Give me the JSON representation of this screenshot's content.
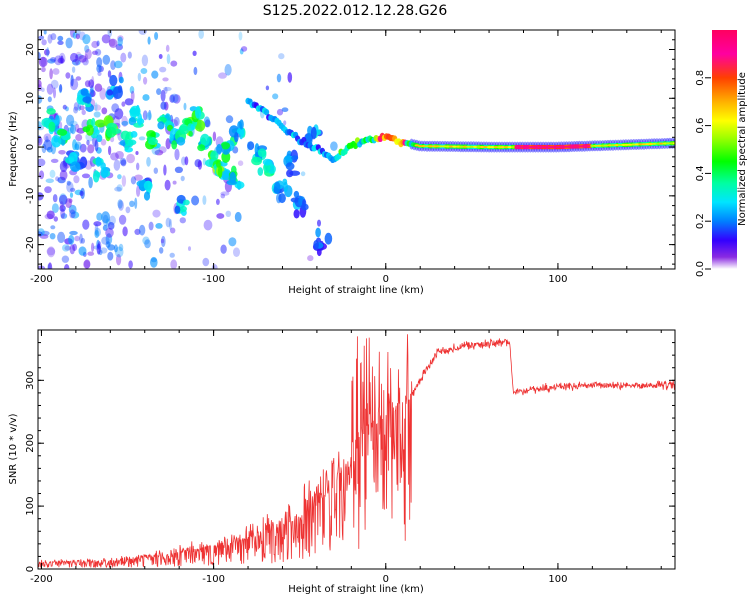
{
  "title": "S125.2022.012.12.28.G26",
  "colors": {
    "snr_line": "#ee3333",
    "axis": "#000000",
    "background": "#ffffff"
  },
  "chart_data": [
    {
      "type": "heatmap",
      "xlabel": "Height of straight line (km)",
      "ylabel": "Frequency (Hz)",
      "xlim": [
        -202,
        168
      ],
      "ylim": [
        -25,
        24
      ],
      "x_ticks": [
        -200,
        -100,
        0,
        100
      ],
      "y_ticks": [
        -20,
        -10,
        0,
        10,
        20
      ],
      "grid": false,
      "colorbar": {
        "label": "Normalized spectral amplitude",
        "range": [
          0,
          1
        ],
        "ticks": [
          "0.0",
          "0.2",
          "0.4",
          "0.6",
          "0.8"
        ],
        "colormap": "gist_ncar_like"
      },
      "ridge": [
        {
          "x": -80,
          "f": 9.5
        },
        {
          "x": -70,
          "f": 7.0
        },
        {
          "x": -60,
          "f": 4.0
        },
        {
          "x": -50,
          "f": 1.5
        },
        {
          "x": -40,
          "f": -0.5
        },
        {
          "x": -30,
          "f": -2.5
        },
        {
          "x": -20,
          "f": 0.5
        },
        {
          "x": -10,
          "f": 1.5
        },
        {
          "x": 0,
          "f": 2.0
        },
        {
          "x": 10,
          "f": 1.0
        },
        {
          "x": 20,
          "f": 0.2
        },
        {
          "x": 60,
          "f": 0.0
        },
        {
          "x": 100,
          "f": 0.0
        },
        {
          "x": 168,
          "f": 0.8
        }
      ],
      "blobs": [
        {
          "x": -195,
          "f": 5,
          "a": 0.35
        },
        {
          "x": -188,
          "f": 2,
          "a": 0.45
        },
        {
          "x": -180,
          "f": -3,
          "a": 0.3
        },
        {
          "x": -175,
          "f": 10,
          "a": 0.3
        },
        {
          "x": -170,
          "f": 3,
          "a": 0.45
        },
        {
          "x": -165,
          "f": -4,
          "a": 0.35
        },
        {
          "x": -160,
          "f": 4,
          "a": 0.55
        },
        {
          "x": -158,
          "f": 12,
          "a": 0.3
        },
        {
          "x": -150,
          "f": 1,
          "a": 0.35
        },
        {
          "x": -145,
          "f": 6,
          "a": 0.4
        },
        {
          "x": -140,
          "f": -8,
          "a": 0.3
        },
        {
          "x": -135,
          "f": 1,
          "a": 0.5
        },
        {
          "x": -128,
          "f": 5,
          "a": 0.45
        },
        {
          "x": -122,
          "f": 2,
          "a": 0.4
        },
        {
          "x": -118,
          "f": -12,
          "a": 0.3
        },
        {
          "x": -115,
          "f": 4,
          "a": 0.55
        },
        {
          "x": -110,
          "f": 6,
          "a": 0.5
        },
        {
          "x": -106,
          "f": 1,
          "a": 0.45
        },
        {
          "x": -100,
          "f": -3,
          "a": 0.55
        },
        {
          "x": -96,
          "f": -5,
          "a": 0.5
        },
        {
          "x": -92,
          "f": 0,
          "a": 0.4
        },
        {
          "x": -88,
          "f": -6,
          "a": 0.45
        },
        {
          "x": -85,
          "f": 3,
          "a": 0.35
        },
        {
          "x": -75,
          "f": -2,
          "a": 0.35
        },
        {
          "x": -68,
          "f": -4,
          "a": 0.35
        },
        {
          "x": -60,
          "f": -9,
          "a": 0.3
        },
        {
          "x": -55,
          "f": -3,
          "a": 0.3
        },
        {
          "x": -50,
          "f": -12,
          "a": 0.25
        },
        {
          "x": -42,
          "f": 3,
          "a": 0.3
        },
        {
          "x": -38,
          "f": -20,
          "a": 0.2
        }
      ]
    },
    {
      "type": "line",
      "xlabel": "Height of straight line (km)",
      "ylabel": "SNR (10 * v/v)",
      "xlim": [
        -202,
        168
      ],
      "ylim": [
        0,
        380
      ],
      "x_ticks": [
        -200,
        -100,
        0,
        100
      ],
      "y_ticks": [
        0,
        100,
        200,
        300
      ],
      "grid": false,
      "series": [
        {
          "color": "#ee3333",
          "trend": [
            {
              "x": -202,
              "y": 10
            },
            {
              "x": -160,
              "y": 12
            },
            {
              "x": -130,
              "y": 20
            },
            {
              "x": -110,
              "y": 30
            },
            {
              "x": -90,
              "y": 40
            },
            {
              "x": -70,
              "y": 55
            },
            {
              "x": -50,
              "y": 80
            },
            {
              "x": -40,
              "y": 100
            },
            {
              "x": -30,
              "y": 130
            },
            {
              "x": -20,
              "y": 160
            },
            {
              "x": -12,
              "y": 200
            },
            {
              "x": -5,
              "y": 230
            },
            {
              "x": 0,
              "y": 240
            },
            {
              "x": 10,
              "y": 250
            },
            {
              "x": 20,
              "y": 300
            },
            {
              "x": 30,
              "y": 345
            },
            {
              "x": 45,
              "y": 355
            },
            {
              "x": 60,
              "y": 358
            },
            {
              "x": 72,
              "y": 360
            },
            {
              "x": 74,
              "y": 282
            },
            {
              "x": 100,
              "y": 290
            },
            {
              "x": 130,
              "y": 292
            },
            {
              "x": 168,
              "y": 292
            }
          ]
        }
      ]
    }
  ]
}
